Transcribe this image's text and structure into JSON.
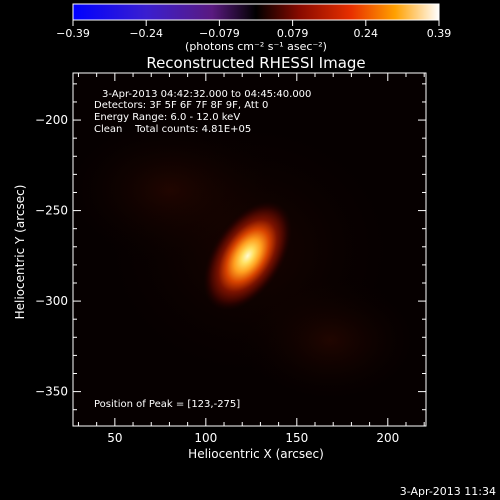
{
  "chart_data": {
    "type": "heatmap",
    "title": "Reconstructed RHESSI Image",
    "xlabel": "Heliocentric X (arcsec)",
    "ylabel": "Heliocentric Y (arcsec)",
    "xlim": [
      27,
      221
    ],
    "ylim": [
      -369,
      -174
    ],
    "xticks": [
      50,
      100,
      150,
      200
    ],
    "yticks": [
      -200,
      -250,
      -300,
      -350
    ],
    "colorbar": {
      "ticks": [
        "-0.39",
        "-0.24",
        "-0.079",
        "0.079",
        "0.24",
        "0.39"
      ],
      "min": -0.39,
      "max": 0.39,
      "label": "(photons cm⁻² s⁻¹ asec⁻²)"
    },
    "source": {
      "x": 123,
      "y": -275,
      "peak_value": 0.39,
      "sigma_major_arcsec": 14,
      "sigma_minor_arcsec": 8,
      "rotation_deg": -57
    },
    "annotations": [
      "3-Apr-2013 04:42:32.000 to 04:45:40.000",
      "Detectors: 3F 5F 6F 7F 8F 9F, Att 0",
      "Energy Range: 6.0 - 12.0 keV",
      "Clean    Total counts: 4.81E+05"
    ],
    "peak_label": "Position of Peak = [123,-275]",
    "timestamp": "3-Apr-2013 11:34"
  }
}
